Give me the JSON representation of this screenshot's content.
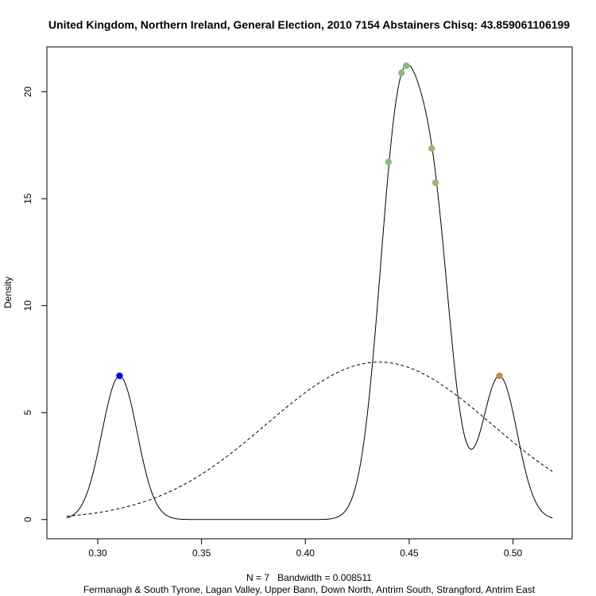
{
  "chart_data": {
    "type": "line",
    "title": "United Kingdom, Northern Ireland, General Election, 2010 7154 Abstainers Chisq: 43.859061106199",
    "xlabel": "N = 7   Bandwidth = 0.008511",
    "sublabel": "Fermanagh & South Tyrone, Lagan Valley, Upper Bann, Down North, Antrim South, Strangford, Antrim East",
    "ylabel": "Density",
    "xlim": [
      0.2755,
      0.5285
    ],
    "ylim": [
      -0.9,
      22.1
    ],
    "xticks": [
      "0.30",
      "0.35",
      "0.40",
      "0.45",
      "0.50"
    ],
    "xtick_values": [
      0.3,
      0.35,
      0.4,
      0.45,
      0.5
    ],
    "yticks": [
      "0",
      "5",
      "10",
      "15",
      "20"
    ],
    "ytick_values": [
      0,
      5,
      10,
      15,
      20
    ],
    "grid": false,
    "bandwidth": 0.008511,
    "curve_range": [
      0.285,
      0.519
    ],
    "normal_mean": 0.4355,
    "normal_sd": 0.0542,
    "points": [
      {
        "x": 0.3105,
        "y": 6.72,
        "color": "#0000ee"
      },
      {
        "x": 0.44,
        "y": 16.72,
        "color": "#8db87f"
      },
      {
        "x": 0.4463,
        "y": 20.88,
        "color": "#8db87f"
      },
      {
        "x": 0.4486,
        "y": 21.22,
        "color": "#8db87f"
      },
      {
        "x": 0.4608,
        "y": 17.35,
        "color": "#9fb277"
      },
      {
        "x": 0.4627,
        "y": 15.75,
        "color": "#a8b070"
      },
      {
        "x": 0.4935,
        "y": 6.72,
        "color": "#c88a52"
      }
    ]
  }
}
